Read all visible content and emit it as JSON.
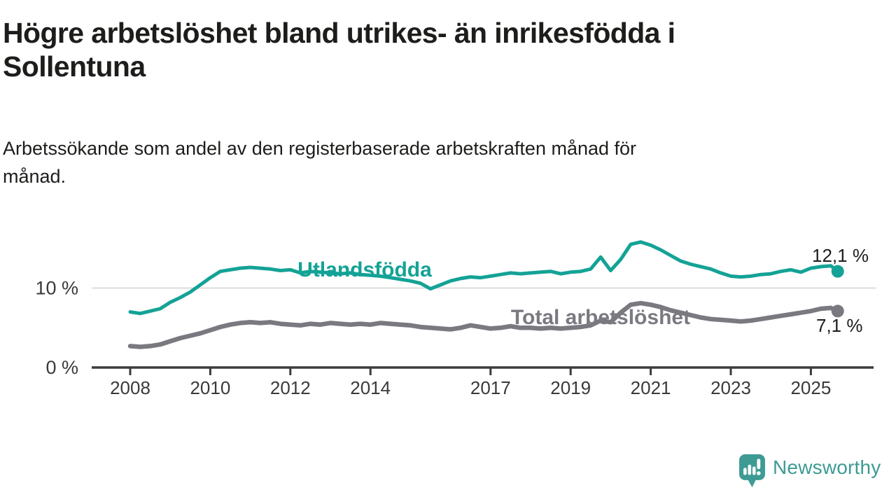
{
  "title_lines": [
    "Högre arbetslöshet bland utrikes- än inrikesfödda i",
    "Sollentuna"
  ],
  "subtitle_lines": [
    "Arbetssökande som andel av den registerbaserade arbetskraften månad för",
    "månad."
  ],
  "branding": {
    "name": "Newsworthy",
    "logo_icon": "speech-bubble-bar-chart-icon",
    "logo_color": "#3d9b94"
  },
  "colors": {
    "accent_teal": "#14a296",
    "series_gray": "#7b7980",
    "axis": "#3c3c3b",
    "gridline": "#dcdcdc",
    "text_dark": "#1d1d1b"
  },
  "chart_data": {
    "type": "line",
    "title": "Högre arbetslöshet bland utrikes- än inrikesfödda i Sollentuna",
    "subtitle": "Arbetssökande som andel av den registerbaserade arbetskraften månad för månad.",
    "xlabel": "",
    "ylabel": "",
    "unit": "%",
    "grid": "horizontal-only",
    "legend_position": "inline-labels-on-lines",
    "x_axis": {
      "ticks": [
        2008,
        2010,
        2012,
        2014,
        2017,
        2019,
        2021,
        2023,
        2025
      ],
      "range": [
        2007,
        2026
      ]
    },
    "y_axis": {
      "tick_values": [
        0,
        10
      ],
      "tick_labels": [
        "0 %",
        "10 %"
      ],
      "range": [
        0,
        17
      ],
      "gridline_at": 10
    },
    "series": [
      {
        "name": "Utlandsfödda",
        "color": "#14a296",
        "end_value": 12.1,
        "end_label": "12,1 %",
        "points": [
          [
            2008,
            7.0
          ],
          [
            2008.25,
            6.8
          ],
          [
            2008.5,
            7.1
          ],
          [
            2008.75,
            7.4
          ],
          [
            2009,
            8.2
          ],
          [
            2009.25,
            8.8
          ],
          [
            2009.5,
            9.5
          ],
          [
            2009.75,
            10.4
          ],
          [
            2010,
            11.3
          ],
          [
            2010.25,
            12.1
          ],
          [
            2010.5,
            12.3
          ],
          [
            2010.75,
            12.5
          ],
          [
            2011,
            12.6
          ],
          [
            2011.25,
            12.5
          ],
          [
            2011.5,
            12.4
          ],
          [
            2011.75,
            12.2
          ],
          [
            2012,
            12.3
          ],
          [
            2012.25,
            11.9
          ],
          [
            2012.5,
            12.1
          ],
          [
            2012.75,
            12.0
          ],
          [
            2013,
            11.9
          ],
          [
            2013.25,
            11.8
          ],
          [
            2013.5,
            11.9
          ],
          [
            2013.75,
            11.7
          ],
          [
            2014,
            11.6
          ],
          [
            2014.25,
            11.5
          ],
          [
            2014.5,
            11.3
          ],
          [
            2014.75,
            11.1
          ],
          [
            2015,
            10.9
          ],
          [
            2015.25,
            10.6
          ],
          [
            2015.5,
            9.9
          ],
          [
            2015.75,
            10.4
          ],
          [
            2016,
            10.9
          ],
          [
            2016.25,
            11.2
          ],
          [
            2016.5,
            11.4
          ],
          [
            2016.75,
            11.3
          ],
          [
            2017,
            11.5
          ],
          [
            2017.25,
            11.7
          ],
          [
            2017.5,
            11.9
          ],
          [
            2017.75,
            11.8
          ],
          [
            2018,
            11.9
          ],
          [
            2018.25,
            12.0
          ],
          [
            2018.5,
            12.1
          ],
          [
            2018.75,
            11.8
          ],
          [
            2019,
            12.0
          ],
          [
            2019.25,
            12.1
          ],
          [
            2019.5,
            12.4
          ],
          [
            2019.75,
            13.9
          ],
          [
            2020,
            12.2
          ],
          [
            2020.25,
            13.6
          ],
          [
            2020.5,
            15.5
          ],
          [
            2020.75,
            15.8
          ],
          [
            2021,
            15.4
          ],
          [
            2021.25,
            14.8
          ],
          [
            2021.5,
            14.1
          ],
          [
            2021.75,
            13.4
          ],
          [
            2022,
            13.0
          ],
          [
            2022.25,
            12.7
          ],
          [
            2022.5,
            12.4
          ],
          [
            2022.75,
            11.9
          ],
          [
            2023,
            11.5
          ],
          [
            2023.25,
            11.4
          ],
          [
            2023.5,
            11.5
          ],
          [
            2023.75,
            11.7
          ],
          [
            2024,
            11.8
          ],
          [
            2024.25,
            12.1
          ],
          [
            2024.5,
            12.3
          ],
          [
            2024.75,
            12.0
          ],
          [
            2025,
            12.5
          ],
          [
            2025.25,
            12.7
          ],
          [
            2025.5,
            12.8
          ],
          [
            2025.67,
            12.1
          ]
        ]
      },
      {
        "name": "Total arbetslöshet",
        "color": "#7b7980",
        "end_value": 7.1,
        "end_label": "7,1 %",
        "points": [
          [
            2008,
            2.7
          ],
          [
            2008.25,
            2.6
          ],
          [
            2008.5,
            2.7
          ],
          [
            2008.75,
            2.9
          ],
          [
            2009,
            3.3
          ],
          [
            2009.25,
            3.7
          ],
          [
            2009.5,
            4.0
          ],
          [
            2009.75,
            4.3
          ],
          [
            2010,
            4.7
          ],
          [
            2010.25,
            5.1
          ],
          [
            2010.5,
            5.4
          ],
          [
            2010.75,
            5.6
          ],
          [
            2011,
            5.7
          ],
          [
            2011.25,
            5.6
          ],
          [
            2011.5,
            5.7
          ],
          [
            2011.75,
            5.5
          ],
          [
            2012,
            5.4
          ],
          [
            2012.25,
            5.3
          ],
          [
            2012.5,
            5.5
          ],
          [
            2012.75,
            5.4
          ],
          [
            2013,
            5.6
          ],
          [
            2013.25,
            5.5
          ],
          [
            2013.5,
            5.4
          ],
          [
            2013.75,
            5.5
          ],
          [
            2014,
            5.4
          ],
          [
            2014.25,
            5.6
          ],
          [
            2014.5,
            5.5
          ],
          [
            2014.75,
            5.4
          ],
          [
            2015,
            5.3
          ],
          [
            2015.25,
            5.1
          ],
          [
            2015.5,
            5.0
          ],
          [
            2015.75,
            4.9
          ],
          [
            2016,
            4.8
          ],
          [
            2016.25,
            5.0
          ],
          [
            2016.5,
            5.3
          ],
          [
            2016.75,
            5.1
          ],
          [
            2017,
            4.9
          ],
          [
            2017.25,
            5.0
          ],
          [
            2017.5,
            5.2
          ],
          [
            2017.75,
            5.0
          ],
          [
            2018,
            5.0
          ],
          [
            2018.25,
            4.9
          ],
          [
            2018.5,
            5.0
          ],
          [
            2018.75,
            4.9
          ],
          [
            2019,
            5.0
          ],
          [
            2019.25,
            5.1
          ],
          [
            2019.5,
            5.3
          ],
          [
            2019.75,
            5.9
          ],
          [
            2020,
            5.7
          ],
          [
            2020.25,
            6.9
          ],
          [
            2020.5,
            7.9
          ],
          [
            2020.75,
            8.1
          ],
          [
            2021,
            7.9
          ],
          [
            2021.25,
            7.6
          ],
          [
            2021.5,
            7.2
          ],
          [
            2021.75,
            6.9
          ],
          [
            2022,
            6.6
          ],
          [
            2022.25,
            6.3
          ],
          [
            2022.5,
            6.1
          ],
          [
            2022.75,
            6.0
          ],
          [
            2023,
            5.9
          ],
          [
            2023.25,
            5.8
          ],
          [
            2023.5,
            5.9
          ],
          [
            2023.75,
            6.1
          ],
          [
            2024,
            6.3
          ],
          [
            2024.25,
            6.5
          ],
          [
            2024.5,
            6.7
          ],
          [
            2024.75,
            6.9
          ],
          [
            2025,
            7.1
          ],
          [
            2025.25,
            7.4
          ],
          [
            2025.5,
            7.5
          ],
          [
            2025.67,
            7.1
          ]
        ]
      }
    ]
  }
}
